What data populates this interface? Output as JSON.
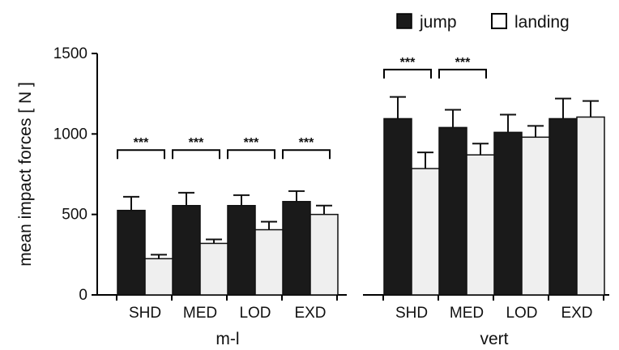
{
  "chart_data": {
    "type": "bar",
    "ylabel": "mean impact forces [ N ]",
    "ylim": [
      0,
      1500
    ],
    "yticks": [
      0,
      500,
      1000,
      1500
    ],
    "legend": {
      "position": "top-right",
      "entries": [
        "jump",
        "landing"
      ]
    },
    "colors": {
      "jump": "#1a1a1a",
      "landing": "#efefef"
    },
    "groups": [
      {
        "name": "m-l",
        "categories": [
          "SHD",
          "MED",
          "LOD",
          "EXD"
        ],
        "series": [
          {
            "name": "jump",
            "values": [
              525,
              555,
              555,
              580
            ],
            "errors": [
              85,
              80,
              65,
              65
            ]
          },
          {
            "name": "landing",
            "values": [
              225,
              320,
              405,
              500
            ],
            "errors": [
              25,
              25,
              50,
              55
            ]
          }
        ],
        "significance": [
          {
            "label": "***",
            "from": 0,
            "to": 1
          },
          {
            "label": "***",
            "from": 1,
            "to": 2
          },
          {
            "label": "***",
            "from": 2,
            "to": 3
          },
          {
            "label": "***",
            "from": 3,
            "to": 4
          }
        ]
      },
      {
        "name": "vert",
        "categories": [
          "SHD",
          "MED",
          "LOD",
          "EXD"
        ],
        "series": [
          {
            "name": "jump",
            "values": [
              1095,
              1040,
              1010,
              1095
            ],
            "errors": [
              135,
              110,
              110,
              125
            ]
          },
          {
            "name": "landing",
            "values": [
              785,
              870,
              980,
              1105
            ],
            "errors": [
              100,
              70,
              70,
              100
            ]
          }
        ],
        "significance": [
          {
            "label": "***",
            "from": 0,
            "to": 1
          },
          {
            "label": "***",
            "from": 1,
            "to": 2
          }
        ]
      }
    ]
  }
}
